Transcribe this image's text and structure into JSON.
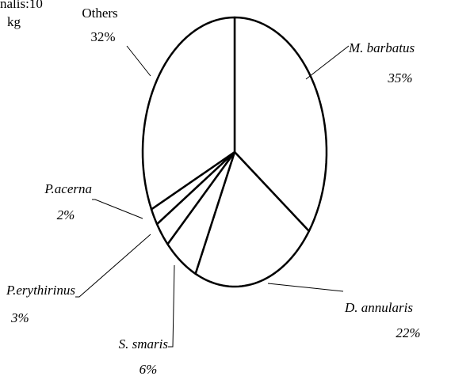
{
  "chart_data": {
    "type": "pie",
    "annotation": [
      "nalis:10",
      "kg"
    ],
    "categories": [
      "M. barbatus",
      "D. annularis",
      "S. smaris",
      "P.erythirinus",
      "P.acerna",
      "Others"
    ],
    "values": [
      35,
      22,
      6,
      3,
      2,
      32
    ],
    "value_labels": [
      "35%",
      "22%",
      "6%",
      "3%",
      "2%",
      "32%"
    ],
    "color": "#ffffff",
    "edge_color": "#000000"
  }
}
